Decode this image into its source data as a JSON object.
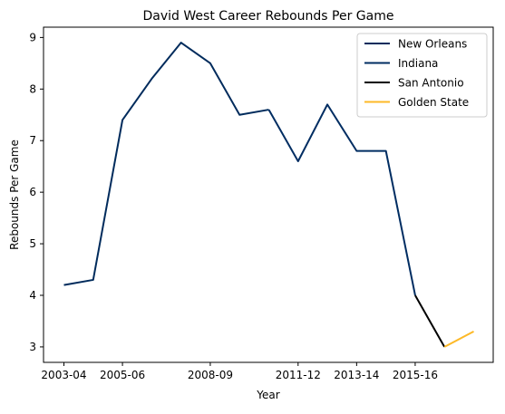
{
  "chart_data": {
    "type": "line",
    "title": "David West  Career Rebounds Per Game",
    "xlabel": "Year",
    "ylabel": "Rebounds Per Game",
    "seasons": [
      "2003-04",
      "2004-05",
      "2005-06",
      "2006-07",
      "2007-08",
      "2008-09",
      "2009-10",
      "2010-11",
      "2011-12",
      "2012-13",
      "2013-14",
      "2014-15",
      "2015-16",
      "2016-17",
      "2017-18"
    ],
    "x_tick_labels": [
      "2003-04",
      "2005-06",
      "2008-09",
      "2011-12",
      "2013-14",
      "2015-16"
    ],
    "x_tick_seasons": [
      "2003-04",
      "2005-06",
      "2008-09",
      "2011-12",
      "2013-14",
      "2015-16"
    ],
    "ylim": [
      2.7,
      9.2
    ],
    "y_ticks": [
      3,
      4,
      5,
      6,
      7,
      8,
      9
    ],
    "grid": false,
    "legend_position": "top-right",
    "series": [
      {
        "name": "New Orleans",
        "color": "#002B5C",
        "points": [
          [
            "2003-04",
            4.2
          ],
          [
            "2004-05",
            4.3
          ],
          [
            "2005-06",
            7.4
          ],
          [
            "2006-07",
            8.2
          ],
          [
            "2007-08",
            8.9
          ],
          [
            "2008-09",
            8.5
          ],
          [
            "2009-10",
            7.5
          ],
          [
            "2010-11",
            7.6
          ]
        ]
      },
      {
        "name": "Indiana",
        "color": "#002D62",
        "points": [
          [
            "2010-11",
            7.6
          ],
          [
            "2011-12",
            6.6
          ],
          [
            "2012-13",
            7.7
          ],
          [
            "2013-14",
            6.8
          ],
          [
            "2014-15",
            6.8
          ],
          [
            "2015-16",
            4.0
          ]
        ]
      },
      {
        "name": "San Antonio",
        "color": "#000000",
        "points": [
          [
            "2015-16",
            4.0
          ],
          [
            "2016-17",
            3.0
          ]
        ]
      },
      {
        "name": "Golden State",
        "color": "#FDB927",
        "points": [
          [
            "2016-17",
            3.0
          ],
          [
            "2017-18",
            3.3
          ]
        ]
      }
    ]
  }
}
